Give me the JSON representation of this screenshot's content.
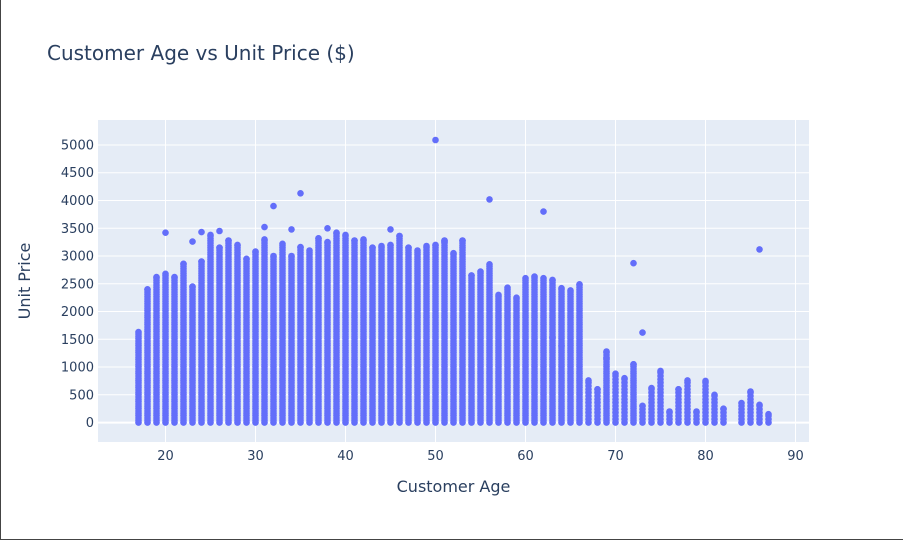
{
  "chart_data": {
    "type": "scatter",
    "title": "Customer Age vs Unit Price ($)",
    "xlabel": "Customer Age",
    "ylabel": "Unit Price",
    "xlim": [
      12.5,
      91.5
    ],
    "ylim": [
      -350,
      5450
    ],
    "xticks": [
      20,
      30,
      40,
      50,
      60,
      70,
      80,
      90
    ],
    "yticks": [
      0,
      500,
      1000,
      1500,
      2000,
      2500,
      3000,
      3500,
      4000,
      4500,
      5000
    ],
    "grid": true,
    "legend": false,
    "marker_color": "#636efa",
    "background_color": "#e5ecf6",
    "columns": [
      {
        "x": 17,
        "max": 1630
      },
      {
        "x": 18,
        "max": 2400
      },
      {
        "x": 19,
        "max": 2620
      },
      {
        "x": 20,
        "max": 2680
      },
      {
        "x": 21,
        "max": 2620
      },
      {
        "x": 22,
        "max": 2860
      },
      {
        "x": 23,
        "max": 2450
      },
      {
        "x": 24,
        "max": 2900
      },
      {
        "x": 25,
        "max": 3380
      },
      {
        "x": 26,
        "max": 3150
      },
      {
        "x": 27,
        "max": 3280
      },
      {
        "x": 28,
        "max": 3200
      },
      {
        "x": 29,
        "max": 2950
      },
      {
        "x": 30,
        "max": 3080
      },
      {
        "x": 31,
        "max": 3300
      },
      {
        "x": 32,
        "max": 3000
      },
      {
        "x": 33,
        "max": 3220
      },
      {
        "x": 34,
        "max": 3000
      },
      {
        "x": 35,
        "max": 3160
      },
      {
        "x": 36,
        "max": 3100
      },
      {
        "x": 37,
        "max": 3320
      },
      {
        "x": 38,
        "max": 3250
      },
      {
        "x": 39,
        "max": 3420
      },
      {
        "x": 40,
        "max": 3380
      },
      {
        "x": 41,
        "max": 3280
      },
      {
        "x": 42,
        "max": 3300
      },
      {
        "x": 43,
        "max": 3150
      },
      {
        "x": 44,
        "max": 3180
      },
      {
        "x": 45,
        "max": 3200
      },
      {
        "x": 46,
        "max": 3360
      },
      {
        "x": 47,
        "max": 3150
      },
      {
        "x": 48,
        "max": 3100
      },
      {
        "x": 49,
        "max": 3180
      },
      {
        "x": 50,
        "max": 3200
      },
      {
        "x": 51,
        "max": 3280
      },
      {
        "x": 52,
        "max": 3050
      },
      {
        "x": 53,
        "max": 3280
      },
      {
        "x": 54,
        "max": 2650
      },
      {
        "x": 55,
        "max": 2720
      },
      {
        "x": 56,
        "max": 2850
      },
      {
        "x": 57,
        "max": 2300
      },
      {
        "x": 58,
        "max": 2430
      },
      {
        "x": 59,
        "max": 2250
      },
      {
        "x": 60,
        "max": 2600
      },
      {
        "x": 61,
        "max": 2630
      },
      {
        "x": 62,
        "max": 2600
      },
      {
        "x": 63,
        "max": 2570
      },
      {
        "x": 64,
        "max": 2420
      },
      {
        "x": 65,
        "max": 2380
      },
      {
        "x": 66,
        "max": 2490
      },
      {
        "x": 67,
        "max": 760
      },
      {
        "x": 68,
        "max": 600
      },
      {
        "x": 69,
        "max": 1280
      },
      {
        "x": 70,
        "max": 880
      },
      {
        "x": 71,
        "max": 800
      },
      {
        "x": 72,
        "max": 1050
      },
      {
        "x": 73,
        "max": 300
      },
      {
        "x": 74,
        "max": 620
      },
      {
        "x": 75,
        "max": 930
      },
      {
        "x": 76,
        "max": 200
      },
      {
        "x": 77,
        "max": 600
      },
      {
        "x": 78,
        "max": 760
      },
      {
        "x": 79,
        "max": 200
      },
      {
        "x": 80,
        "max": 750
      },
      {
        "x": 81,
        "max": 500
      },
      {
        "x": 82,
        "max": 250
      },
      {
        "x": 84,
        "max": 350
      },
      {
        "x": 85,
        "max": 560
      },
      {
        "x": 86,
        "max": 320
      },
      {
        "x": 87,
        "max": 150
      }
    ],
    "outliers": [
      {
        "x": 20,
        "y": 3420
      },
      {
        "x": 23,
        "y": 3260
      },
      {
        "x": 24,
        "y": 3430
      },
      {
        "x": 26,
        "y": 3450
      },
      {
        "x": 31,
        "y": 3520
      },
      {
        "x": 32,
        "y": 3900
      },
      {
        "x": 34,
        "y": 3480
      },
      {
        "x": 35,
        "y": 4130
      },
      {
        "x": 38,
        "y": 3500
      },
      {
        "x": 45,
        "y": 3480
      },
      {
        "x": 50,
        "y": 5090
      },
      {
        "x": 51,
        "y": 3250
      },
      {
        "x": 56,
        "y": 4020
      },
      {
        "x": 62,
        "y": 3800
      },
      {
        "x": 72,
        "y": 2870
      },
      {
        "x": 73,
        "y": 1620
      },
      {
        "x": 86,
        "y": 3120
      },
      {
        "x": 69,
        "y": 1160
      },
      {
        "x": 63,
        "y": 1530
      },
      {
        "x": 64,
        "y": 1380
      }
    ]
  }
}
